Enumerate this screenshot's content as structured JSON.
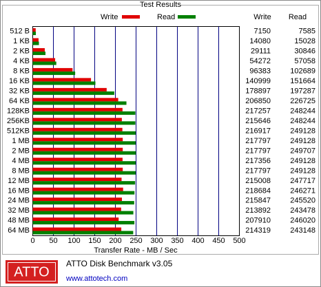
{
  "chart_data": {
    "type": "bar",
    "orientation": "horizontal",
    "title": "Test Results",
    "x_label": "Transfer Rate - MB / Sec",
    "categories": [
      "512 B",
      "1 KB",
      "2 KB",
      "4 KB",
      "8 KB",
      "16 KB",
      "32 KB",
      "64 KB",
      "128KB",
      "256KB",
      "512KB",
      "1 MB",
      "2 MB",
      "4 MB",
      "8 MB",
      "12 MB",
      "16 MB",
      "24 MB",
      "32 MB",
      "48 MB",
      "64 MB"
    ],
    "series": [
      {
        "name": "Write",
        "color": "#e00000",
        "values": [
          7.15,
          14.08,
          29.111,
          54.272,
          96.383,
          140.999,
          178.897,
          206.85,
          217.257,
          215.646,
          216.917,
          217.797,
          217.797,
          217.356,
          217.797,
          215.008,
          218.684,
          215.847,
          213.892,
          207.91,
          214.319
        ],
        "value_labels": [
          "7150",
          "14080",
          "29111",
          "54272",
          "96383",
          "140999",
          "178897",
          "206850",
          "217257",
          "215646",
          "216917",
          "217797",
          "217797",
          "217356",
          "217797",
          "215008",
          "218684",
          "215847",
          "213892",
          "207910",
          "214319"
        ]
      },
      {
        "name": "Read",
        "color": "#008000",
        "values": [
          7.585,
          15.028,
          30.846,
          57.058,
          102.689,
          151.664,
          197.287,
          226.725,
          248.244,
          248.244,
          249.128,
          249.128,
          249.707,
          249.128,
          249.128,
          247.717,
          246.271,
          245.52,
          243.478,
          246.02,
          243.148
        ],
        "value_labels": [
          "7585",
          "15028",
          "30846",
          "57058",
          "102689",
          "151664",
          "197287",
          "226725",
          "248244",
          "248244",
          "249128",
          "249128",
          "249707",
          "249128",
          "249128",
          "247717",
          "246271",
          "245520",
          "243478",
          "246020",
          "243148"
        ]
      }
    ],
    "xlim": [
      0,
      500
    ],
    "xticks": [
      0,
      50,
      100,
      150,
      200,
      250,
      300,
      350,
      400,
      450,
      500
    ],
    "grid": true
  },
  "footer": {
    "logo": "ATTO",
    "product": "ATTO Disk Benchmark v3.05",
    "url": "www.attotech.com"
  }
}
